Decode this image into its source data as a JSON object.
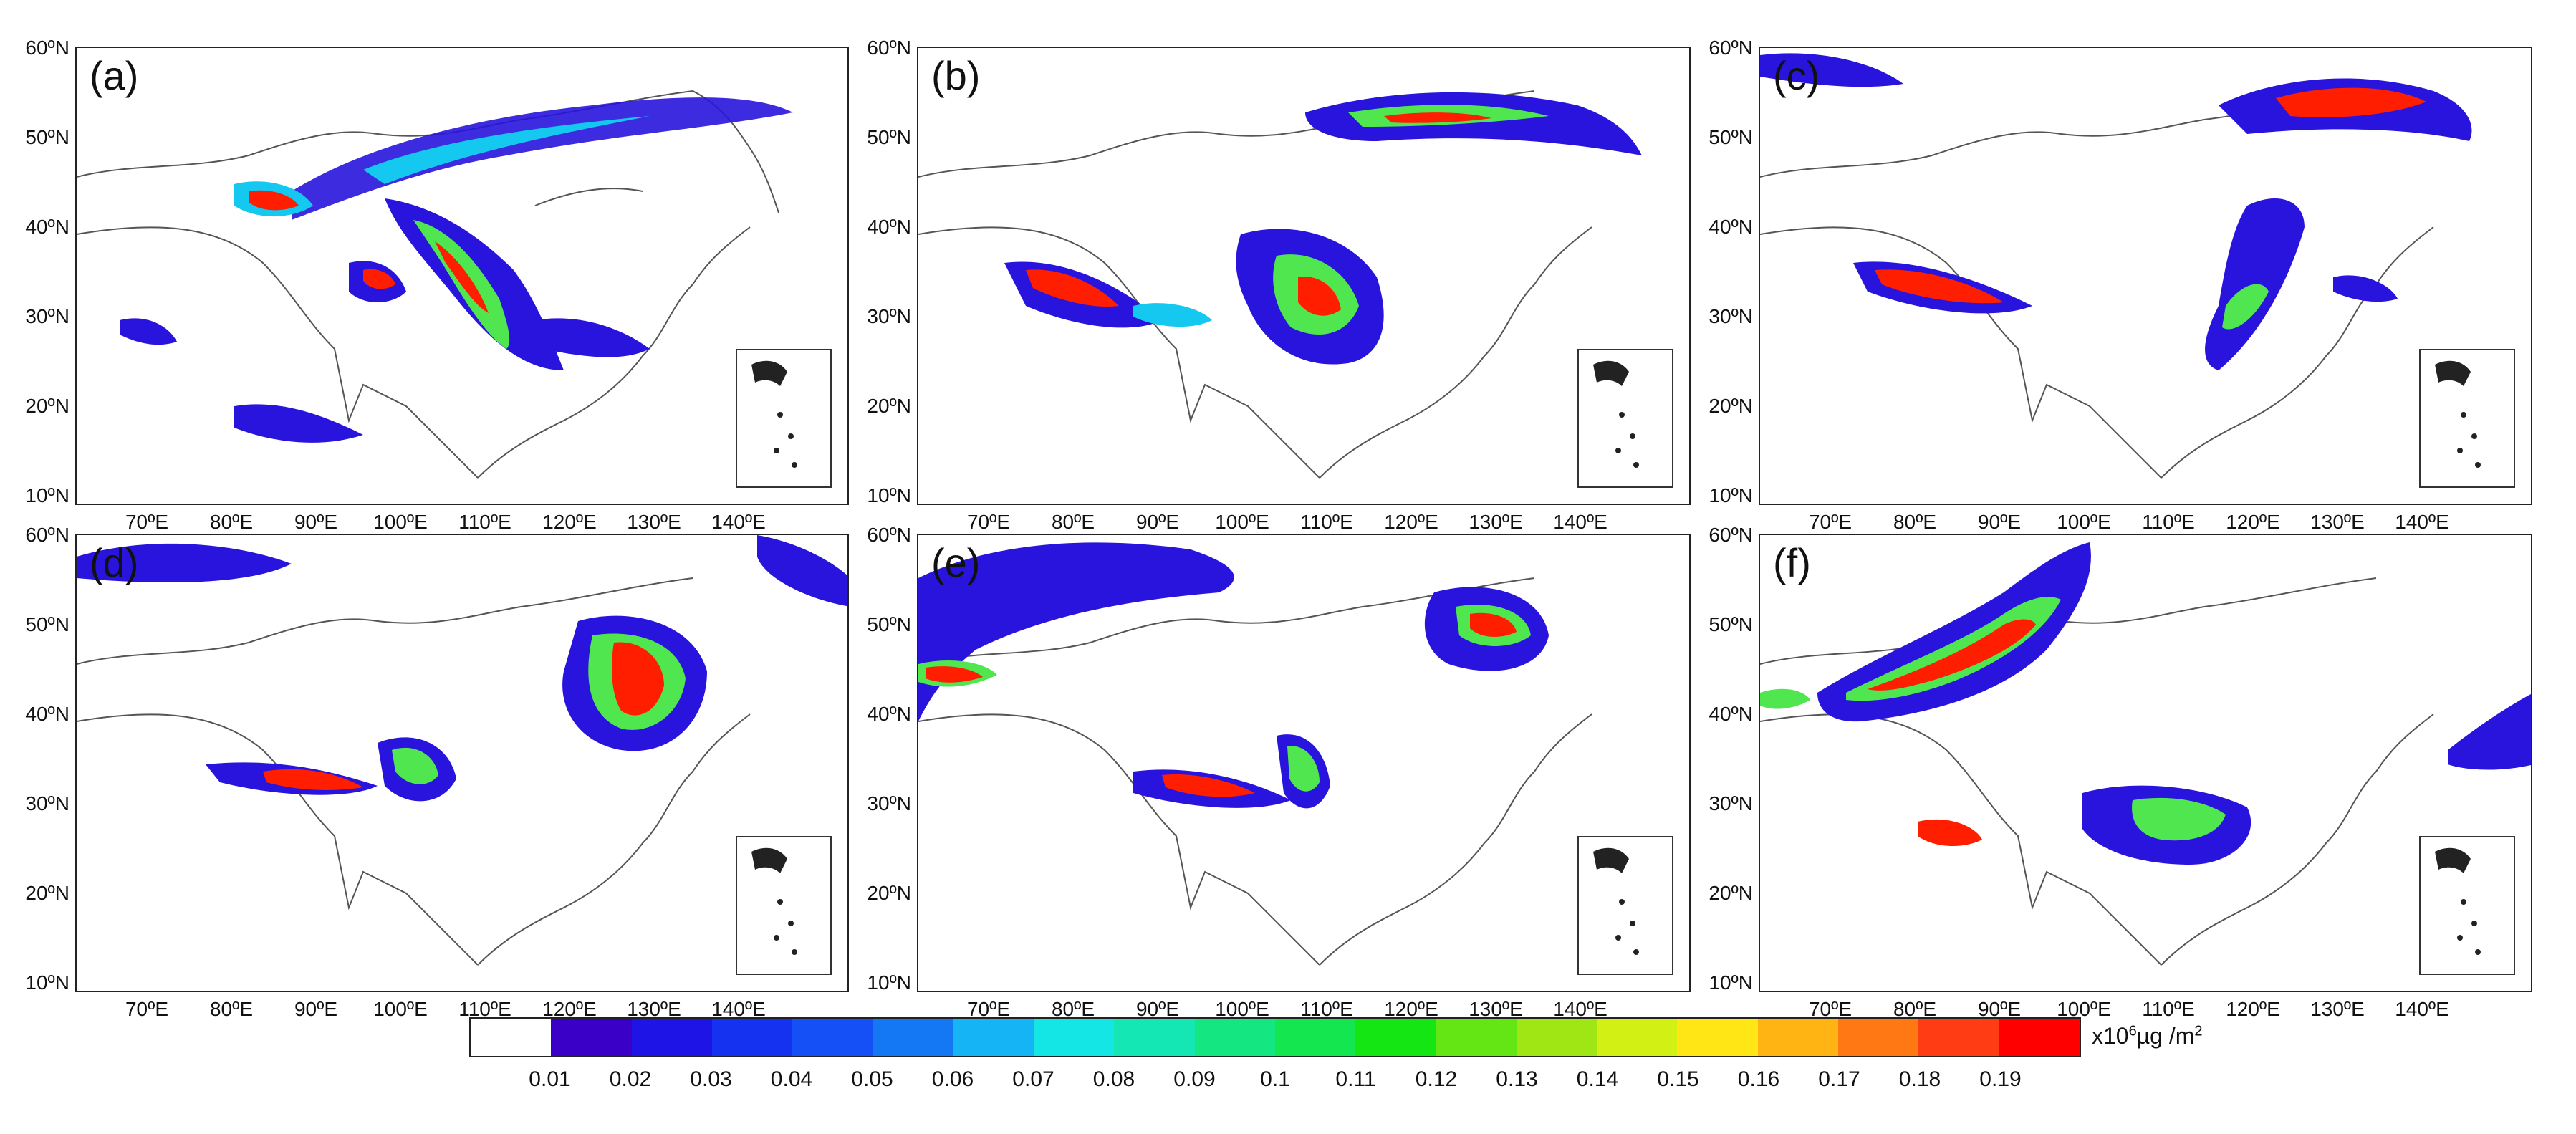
{
  "lat_ticks": [
    "60ºN",
    "50ºN",
    "40ºN",
    "30ºN",
    "20ºN",
    "10ºN"
  ],
  "lon_ticks": [
    "70ºE",
    "80ºE",
    "90ºE",
    "100ºE",
    "110ºE",
    "120ºE",
    "130ºE",
    "140ºE"
  ],
  "panels": [
    {
      "label": "(a)"
    },
    {
      "label": "(b)"
    },
    {
      "label": "(c)"
    },
    {
      "label": "(d)"
    },
    {
      "label": "(e)"
    },
    {
      "label": "(f)"
    }
  ],
  "colorbar": {
    "ticks": [
      "0.01",
      "0.02",
      "0.03",
      "0.04",
      "0.05",
      "0.06",
      "0.07",
      "0.08",
      "0.09",
      "0.1",
      "0.11",
      "0.12",
      "0.13",
      "0.14",
      "0.15",
      "0.16",
      "0.17",
      "0.18",
      "0.19"
    ],
    "unit_prefix": "x10",
    "unit_exp": "6",
    "unit_suffix": "µg /m",
    "unit_exp2": "2",
    "colors": [
      "#ffffff",
      "#3b00c8",
      "#1e14e6",
      "#1432f0",
      "#1450f5",
      "#1478f5",
      "#14b4f5",
      "#14e6e6",
      "#14e6b4",
      "#14e682",
      "#14e650",
      "#14e614",
      "#64e614",
      "#a0e614",
      "#d2f014",
      "#ffe614",
      "#ffb414",
      "#ff7814",
      "#ff3c14",
      "#ff0000"
    ]
  },
  "palette": {
    "low": "#2814dc",
    "mid": "#14c8f0",
    "midhigh": "#50e650",
    "high": "#f0e614",
    "peak": "#ff1e00"
  }
}
